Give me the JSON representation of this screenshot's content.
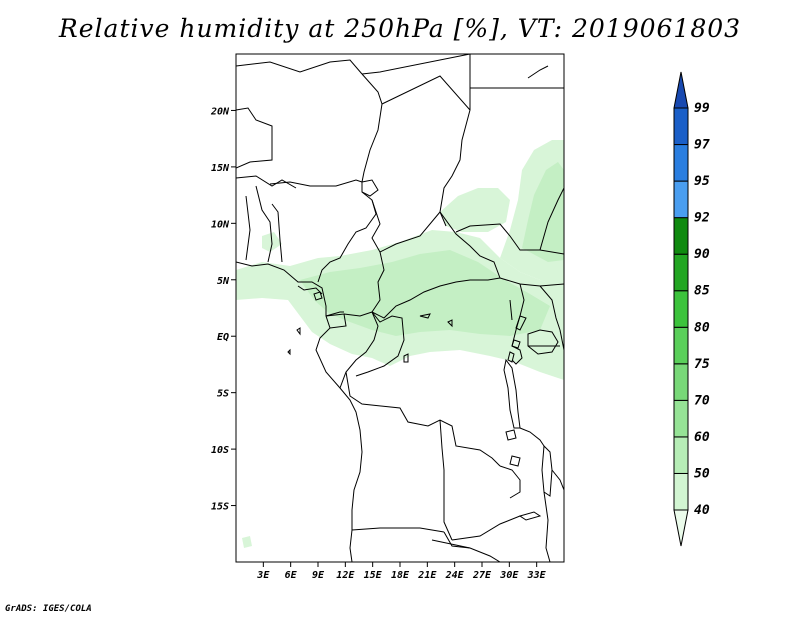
{
  "title": "Relative humidity at 250hPa [%], VT: 2019061803",
  "credit": "GrADS: IGES/COLA",
  "map": {
    "region": "Central Africa",
    "projection": "lat-lon",
    "lon_range": [
      0,
      36
    ],
    "lat_range": [
      -20,
      25
    ],
    "lon_ticks": [
      "3E",
      "6E",
      "9E",
      "12E",
      "15E",
      "18E",
      "21E",
      "24E",
      "27E",
      "30E",
      "33E"
    ],
    "lat_ticks": [
      "20N",
      "15N",
      "10N",
      "5N",
      "EQ",
      "5S",
      "10S",
      "15S"
    ],
    "shaded_field": "relative humidity (%)",
    "shading_note": "light-green shading (40-60%) over the Gulf of Guinea coast, central Africa 0-8N, and a band near 30-35E 5-15N"
  },
  "colorbar": {
    "levels": [
      "40",
      "50",
      "60",
      "70",
      "75",
      "80",
      "85",
      "90",
      "92",
      "95",
      "97",
      "99"
    ],
    "colors": [
      "#ebfbeb",
      "#d2f5d2",
      "#b6edb6",
      "#96e396",
      "#78d878",
      "#5acf5a",
      "#3cc33c",
      "#22a622",
      "#0f8a0f",
      "#4a9ef0",
      "#2a7ee0",
      "#1a5fc8",
      "#1849b0"
    ],
    "extends": "both"
  },
  "colors": {
    "background": "#ffffff",
    "lines": "#000000"
  }
}
